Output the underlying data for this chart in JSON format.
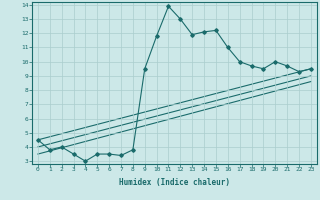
{
  "xlabel": "Humidex (Indice chaleur)",
  "bg_color": "#cce8e8",
  "line_color": "#1a6b6b",
  "grid_color": "#aacece",
  "line1_x": [
    0,
    1,
    2,
    3,
    4,
    5,
    6,
    7,
    8,
    9,
    10,
    11,
    12,
    13,
    14,
    15,
    16,
    17,
    18,
    19,
    20,
    21,
    22,
    23
  ],
  "line1_y": [
    4.5,
    3.8,
    4.0,
    3.5,
    3.0,
    3.5,
    3.5,
    3.4,
    3.8,
    9.5,
    11.8,
    13.9,
    13.0,
    11.9,
    12.1,
    12.2,
    11.0,
    10.0,
    9.7,
    9.5,
    10.0,
    9.7,
    9.3,
    9.5
  ],
  "line2_x": [
    0,
    23
  ],
  "line2_y": [
    4.5,
    9.5
  ],
  "line3_x": [
    0,
    23
  ],
  "line3_y": [
    4.0,
    9.0
  ],
  "line4_x": [
    0,
    23
  ],
  "line4_y": [
    3.5,
    8.6
  ],
  "ylim": [
    2.8,
    14.2
  ],
  "xlim": [
    -0.5,
    23.5
  ],
  "yticks": [
    3,
    4,
    5,
    6,
    7,
    8,
    9,
    10,
    11,
    12,
    13,
    14
  ],
  "xticks": [
    0,
    1,
    2,
    3,
    4,
    5,
    6,
    7,
    8,
    9,
    10,
    11,
    12,
    13,
    14,
    15,
    16,
    17,
    18,
    19,
    20,
    21,
    22,
    23
  ]
}
